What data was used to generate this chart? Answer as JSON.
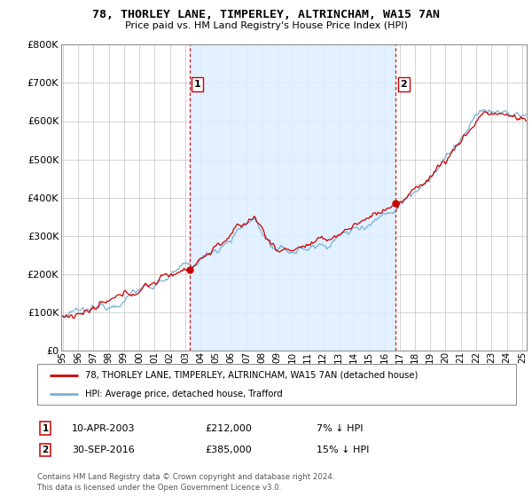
{
  "title": "78, THORLEY LANE, TIMPERLEY, ALTRINCHAM, WA15 7AN",
  "subtitle": "Price paid vs. HM Land Registry's House Price Index (HPI)",
  "ylim": [
    0,
    800000
  ],
  "yticks": [
    0,
    100000,
    200000,
    300000,
    400000,
    500000,
    600000,
    700000,
    800000
  ],
  "xlim_start": 1994.9,
  "xlim_end": 2025.3,
  "transactions": [
    {
      "year": 2003.28,
      "price": 212000,
      "label": "1",
      "date": "10-APR-2003",
      "pct": "7%"
    },
    {
      "year": 2016.75,
      "price": 385000,
      "label": "2",
      "date": "30-SEP-2016",
      "pct": "15%"
    }
  ],
  "legend_entry1": "78, THORLEY LANE, TIMPERLEY, ALTRINCHAM, WA15 7AN (detached house)",
  "legend_entry2": "HPI: Average price, detached house, Trafford",
  "note1": "Contains HM Land Registry data © Crown copyright and database right 2024.",
  "note2": "This data is licensed under the Open Government Licence v3.0.",
  "line_color_property": "#cc0000",
  "line_color_hpi": "#7ab0d4",
  "shade_color": "#ddeeff",
  "vline_color": "#cc0000",
  "background_color": "#ffffff",
  "grid_color": "#cccccc",
  "title_fontsize": 9.5,
  "subtitle_fontsize": 8.0
}
